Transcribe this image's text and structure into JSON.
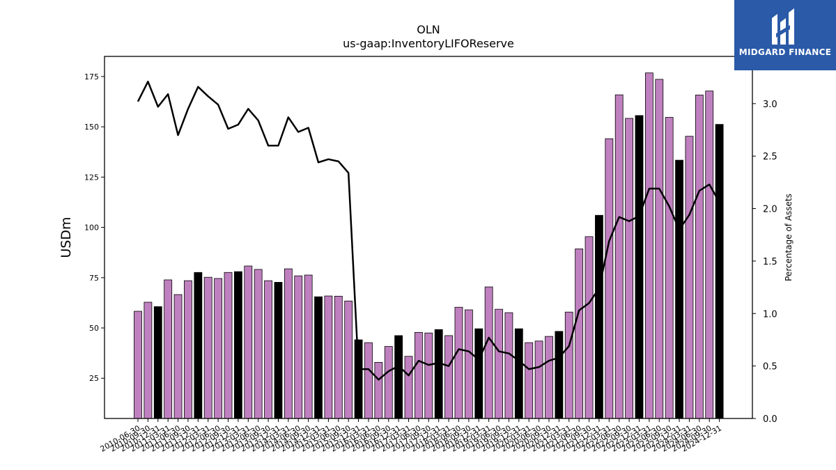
{
  "chart_data": {
    "type": "bar+line",
    "title": "OLN",
    "subtitle": "us-gaap:InventoryLIFOReserve",
    "ylabel": "USDm",
    "y2label": "Percentage of Assets",
    "ylim": [
      5,
      185
    ],
    "y2lim": [
      0,
      3.45
    ],
    "yticks": [
      25,
      50,
      75,
      100,
      125,
      150,
      175
    ],
    "y2ticks": [
      "0.0",
      "0.5",
      "1.0",
      "1.5",
      "2.0",
      "2.5",
      "3.0"
    ],
    "categories": [
      "2010-06-30",
      "2010-09-30",
      "2010-12-31",
      "2011-03-31",
      "2011-06-30",
      "2011-09-30",
      "2011-12-31",
      "2012-03-31",
      "2012-06-30",
      "2012-09-30",
      "2012-12-31",
      "2013-03-31",
      "2013-06-30",
      "2013-09-30",
      "2013-12-31",
      "2014-03-31",
      "2014-06-30",
      "2014-09-30",
      "2014-12-31",
      "2015-03-31",
      "2015-06-30",
      "2015-09-30",
      "2015-12-31",
      "2016-03-31",
      "2016-06-30",
      "2016-09-30",
      "2016-12-31",
      "2017-03-31",
      "2017-06-30",
      "2017-09-30",
      "2017-12-31",
      "2018-03-31",
      "2018-06-30",
      "2018-09-30",
      "2018-12-31",
      "2019-03-31",
      "2019-06-30",
      "2019-09-30",
      "2019-12-31",
      "2020-03-31",
      "2020-06-30",
      "2020-09-30",
      "2020-12-31",
      "2021-03-31",
      "2021-06-30",
      "2021-09-30",
      "2021-12-31",
      "2022-03-31",
      "2022-06-30",
      "2022-09-30",
      "2022-12-31",
      "2023-03-31",
      "2023-06-30",
      "2023-09-30",
      "2023-12-31",
      "2024-03-31",
      "2024-06-30",
      "2024-09-30",
      "2024-12-31"
    ],
    "xtick_labels": [
      "2010-06-30",
      "2010-09-30",
      "2010-12-31",
      "2011-03-31",
      "2011-06-30",
      "2011-09-30",
      "2011-12-31",
      "2012-03-31",
      "2012-06-30",
      "2012-09-30",
      "2012-12-31",
      "2013-03-31",
      "2013-06-30",
      "2013-09-30",
      "2013-12-31",
      "2014-03-31",
      "2014-06-30",
      "2014-09-30",
      "2014-12-31",
      "2015-03-31",
      "2015-06-30",
      "2015-09-30",
      "2015-12-31",
      "2016-03-31",
      "2016-06-30",
      "2016-09-30",
      "2016-12-31",
      "2017-03-31",
      "2017-06-30",
      "2017-09-30",
      "2017-12-31",
      "2018-03-31",
      "2018-06-30",
      "2018-09-30",
      "2018-12-31",
      "2019-03-31",
      "2019-06-30",
      "2019-09-30",
      "2019-12-31",
      "2020-03-31",
      "2020-06-30",
      "2020-09-30",
      "2020-12-31",
      "2021-03-31",
      "2021-06-30",
      "2021-09-30",
      "2021-12-31",
      "2022-03-31",
      "2022-06-30",
      "2022-09-30",
      "2022-12-31",
      "2023-03-31",
      "2023-06-30",
      "2023-09-30",
      "2023-12-31",
      "2024-03-31",
      "2024-06-30",
      "2024-09-30",
      "2024-12-31"
    ],
    "bar_values": [
      58.3,
      62.8,
      60.6,
      73.9,
      66.6,
      73.5,
      77.6,
      75.2,
      74.6,
      77.6,
      78.0,
      80.8,
      79.1,
      73.5,
      72.7,
      79.4,
      75.9,
      76.3,
      65.5,
      65.9,
      65.8,
      63.4,
      44.1,
      42.7,
      32.9,
      40.8,
      46.2,
      35.9,
      47.8,
      47.5,
      49.2,
      46.2,
      60.3,
      59.0,
      49.6,
      70.4,
      59.3,
      57.6,
      49.6,
      42.7,
      43.5,
      45.8,
      48.3,
      57.9,
      89.3,
      95.4,
      106.0,
      144.1,
      165.9,
      154.2,
      155.6,
      176.8,
      173.6,
      154.7,
      133.4,
      145.3,
      165.8,
      167.8,
      151.2
    ],
    "bar_highlight": [
      false,
      false,
      true,
      false,
      false,
      false,
      true,
      false,
      false,
      false,
      true,
      false,
      false,
      false,
      true,
      false,
      false,
      false,
      true,
      false,
      false,
      false,
      true,
      false,
      false,
      false,
      true,
      false,
      false,
      false,
      true,
      false,
      false,
      false,
      true,
      false,
      false,
      false,
      true,
      false,
      false,
      false,
      true,
      false,
      false,
      false,
      true,
      false,
      false,
      false,
      true,
      false,
      false,
      false,
      true,
      false,
      false,
      false,
      true
    ],
    "line_values": [
      3.02,
      3.21,
      2.97,
      3.09,
      2.7,
      2.95,
      3.16,
      3.07,
      2.99,
      2.76,
      2.8,
      2.95,
      2.84,
      2.6,
      2.6,
      2.87,
      2.73,
      2.77,
      2.44,
      2.47,
      2.45,
      2.34,
      0.47,
      0.47,
      0.37,
      0.45,
      0.5,
      0.41,
      0.55,
      0.51,
      0.53,
      0.5,
      0.66,
      0.64,
      0.56,
      0.77,
      0.64,
      0.62,
      0.55,
      0.47,
      0.49,
      0.55,
      0.58,
      0.69,
      1.03,
      1.1,
      1.24,
      1.69,
      1.92,
      1.88,
      1.93,
      2.19,
      2.19,
      2.02,
      1.8,
      1.94,
      2.17,
      2.23,
      2.06
    ],
    "colors": {
      "bar": "#bf80bf",
      "bar_highlight": "#000000",
      "bar_edge": "#000000",
      "line": "#000000"
    },
    "grid": false
  },
  "logo": {
    "text": "MIDGARD FINANCE",
    "background": "#2a5aa8"
  }
}
